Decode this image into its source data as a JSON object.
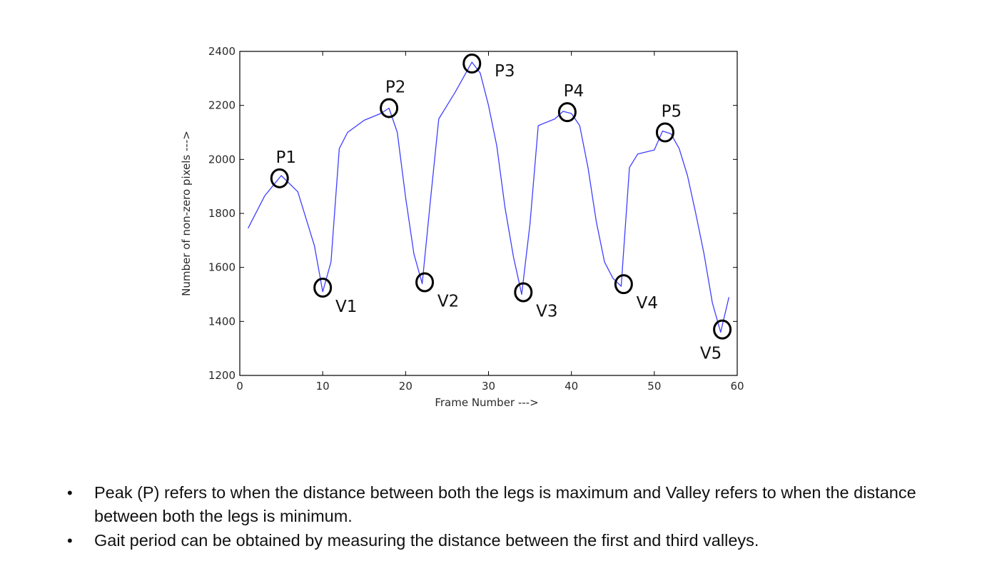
{
  "chart_data": {
    "type": "line",
    "xlabel": "Frame Number --->",
    "ylabel": "Number of non-zero pixels --->",
    "xlim": [
      0,
      60
    ],
    "ylim": [
      1200,
      2400
    ],
    "xticks": [
      "0",
      "10",
      "20",
      "30",
      "40",
      "50",
      "60"
    ],
    "yticks": [
      "1200",
      "1400",
      "1600",
      "1800",
      "2000",
      "2200",
      "2400"
    ],
    "grid": false,
    "line_color": "#3f3fff",
    "series": [
      {
        "x": [
          1,
          3,
          5,
          7,
          9,
          10,
          11,
          12,
          13,
          15,
          17,
          18,
          19,
          20,
          21,
          22,
          23,
          24,
          26,
          28,
          29,
          30,
          31,
          32,
          33,
          34,
          35,
          36,
          38,
          39,
          40,
          41,
          42,
          43,
          44,
          45,
          46,
          47,
          48,
          50,
          51,
          52,
          53,
          54,
          55,
          56,
          57,
          58,
          59
        ],
        "y": [
          1745,
          1865,
          1940,
          1880,
          1680,
          1510,
          1620,
          2040,
          2100,
          2145,
          2170,
          2190,
          2100,
          1860,
          1650,
          1540,
          1850,
          2150,
          2250,
          2360,
          2320,
          2200,
          2050,
          1820,
          1640,
          1500,
          1760,
          2125,
          2150,
          2178,
          2170,
          2125,
          1970,
          1770,
          1620,
          1560,
          1530,
          1970,
          2020,
          2035,
          2105,
          2095,
          2040,
          1940,
          1800,
          1650,
          1470,
          1360,
          1490
        ]
      }
    ],
    "annotations": [
      {
        "label": "P1",
        "x": 4.8,
        "y": 1930,
        "kind": "peak"
      },
      {
        "label": "P2",
        "x": 18.0,
        "y": 2190,
        "kind": "peak"
      },
      {
        "label": "P3",
        "x": 28.0,
        "y": 2355,
        "kind": "peak"
      },
      {
        "label": "P4",
        "x": 39.5,
        "y": 2175,
        "kind": "peak"
      },
      {
        "label": "P5",
        "x": 51.3,
        "y": 2100,
        "kind": "peak"
      },
      {
        "label": "V1",
        "x": 10.0,
        "y": 1525,
        "kind": "valley"
      },
      {
        "label": "V2",
        "x": 22.3,
        "y": 1545,
        "kind": "valley"
      },
      {
        "label": "V3",
        "x": 34.2,
        "y": 1508,
        "kind": "valley"
      },
      {
        "label": "V4",
        "x": 46.3,
        "y": 1538,
        "kind": "valley"
      },
      {
        "label": "V5",
        "x": 58.2,
        "y": 1370,
        "kind": "valley"
      }
    ]
  },
  "notes": [
    "Peak (P) refers to when the distance between both the legs is maximum and Valley refers to when the distance between both the legs is minimum.",
    "Gait period can be obtained by measuring the distance between the first and third valleys."
  ],
  "bullet_symbol": "•"
}
